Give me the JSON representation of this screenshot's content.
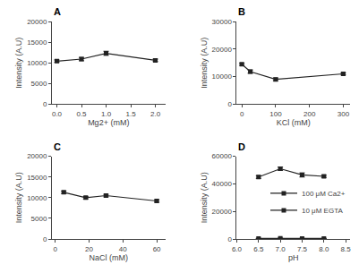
{
  "chart_data": [
    {
      "type": "line",
      "title": "A",
      "x": [
        0.0,
        0.5,
        1.0,
        2.0
      ],
      "values": [
        10400,
        10900,
        12300,
        10600
      ],
      "yerr": [
        300,
        400,
        500,
        300
      ],
      "color": "#222222",
      "marker": "square",
      "line_style": "solid",
      "xlabel": "Mg2+ (mM)",
      "ylabel": "Intensity (A.U)",
      "xlim": [
        -0.1,
        2.2
      ],
      "ylim": [
        0,
        20000
      ],
      "xticks": [
        {
          "value": 0.0,
          "label": "0.0"
        },
        {
          "value": 0.5,
          "label": "0.5"
        },
        {
          "value": 1.0,
          "label": "1.0"
        },
        {
          "value": 1.5,
          "label": "1.5"
        },
        {
          "value": 2.0,
          "label": "2.0"
        }
      ],
      "yticks": [
        0,
        5000,
        10000,
        15000,
        20000
      ],
      "grid": false
    },
    {
      "type": "line",
      "title": "B",
      "x": [
        0,
        25,
        100,
        300
      ],
      "values": [
        14500,
        11800,
        9000,
        11000
      ],
      "yerr": [
        400,
        600,
        500,
        400
      ],
      "color": "#222222",
      "marker": "square",
      "line_style": "solid",
      "xlabel": "KCl (mM)",
      "ylabel": "Intensity (A.U)",
      "xlim": [
        -15,
        320
      ],
      "ylim": [
        0,
        30000
      ],
      "xticks": [
        0,
        100,
        200,
        300
      ],
      "yticks": [
        0,
        10000,
        20000,
        30000
      ],
      "grid": false
    },
    {
      "type": "line",
      "title": "C",
      "x": [
        5,
        18,
        30,
        60
      ],
      "values": [
        11300,
        10000,
        10500,
        9200
      ],
      "yerr": [
        300,
        300,
        300,
        300
      ],
      "color": "#222222",
      "marker": "square",
      "line_style": "solid",
      "xlabel": "NaCl (mM)",
      "ylabel": "Intensity (A.U)",
      "xlim": [
        -2,
        65
      ],
      "ylim": [
        0,
        20000
      ],
      "xticks": [
        0,
        20,
        40,
        60
      ],
      "yticks": [
        0,
        5000,
        10000,
        15000,
        20000
      ],
      "grid": false
    },
    {
      "type": "line",
      "title": "D",
      "x": [
        6.5,
        7.0,
        7.5,
        8.0
      ],
      "series": [
        {
          "name": "100 μM Ca2+",
          "color": "#222222",
          "marker": "square",
          "line_style": "solid",
          "values": [
            45000,
            51000,
            46500,
            45500
          ],
          "yerr": [
            1000,
            1200,
            1500,
            800
          ]
        },
        {
          "name": "10 μM EGTA",
          "color": "#222222",
          "marker": "square",
          "line_style": "solid",
          "values": [
            400,
            500,
            400,
            400
          ],
          "yerr": [
            100,
            100,
            100,
            100
          ]
        }
      ],
      "xlabel": "pH",
      "ylabel": "Intensity (A.U)",
      "xlim": [
        6.0,
        8.6
      ],
      "ylim": [
        0,
        60000
      ],
      "xticks": [
        {
          "value": 6.0,
          "label": "6.0"
        },
        {
          "value": 6.5,
          "label": "6.5"
        },
        {
          "value": 7.0,
          "label": "7.0"
        },
        {
          "value": 7.5,
          "label": "7.5"
        },
        {
          "value": 8.0,
          "label": "8.0"
        },
        {
          "value": 8.5,
          "label": "8.5"
        }
      ],
      "yticks": [
        0,
        20000,
        40000,
        60000
      ],
      "grid": false,
      "legend": "right"
    }
  ]
}
